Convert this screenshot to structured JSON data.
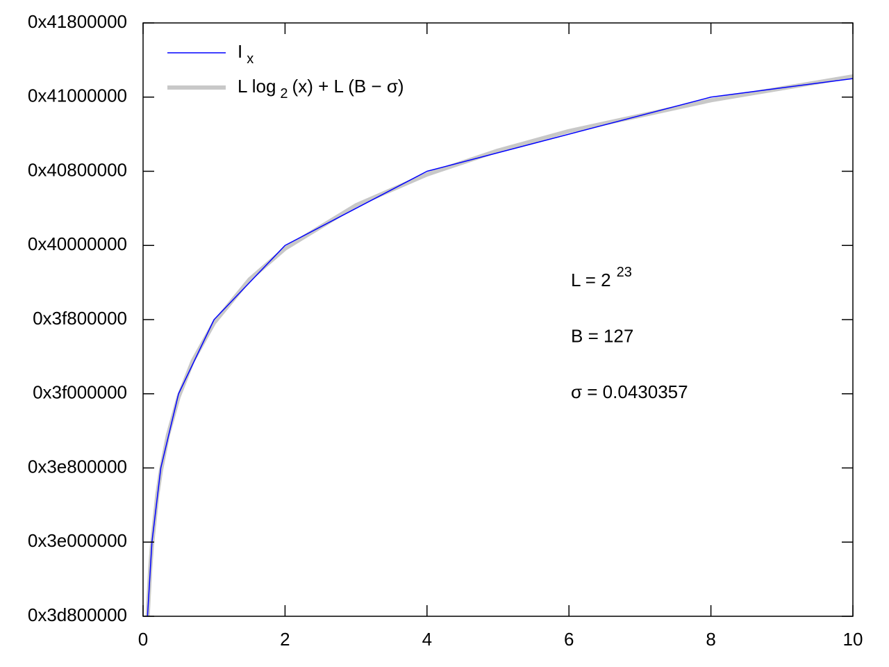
{
  "chart_data": {
    "type": "line",
    "xlim": [
      0,
      10
    ],
    "xticks": [
      0,
      2,
      4,
      6,
      8,
      10
    ],
    "ylim": [
      1031798784,
      1098907648
    ],
    "yticks": [
      {
        "value": 1031798784,
        "label": "0x3d800000"
      },
      {
        "value": 1040187392,
        "label": "0x3e000000"
      },
      {
        "value": 1048576000,
        "label": "0x3e800000"
      },
      {
        "value": 1056964608,
        "label": "0x3f000000"
      },
      {
        "value": 1065353216,
        "label": "0x3f800000"
      },
      {
        "value": 1073741824,
        "label": "0x40000000"
      },
      {
        "value": 1082130432,
        "label": "0x40800000"
      },
      {
        "value": 1090519040,
        "label": "0x41000000"
      },
      {
        "value": 1098907648,
        "label": "0x41800000"
      }
    ],
    "legend": "top-left",
    "series": [
      {
        "name": [
          {
            "text": "I"
          },
          {
            "text": "x",
            "sub": true
          }
        ],
        "color": "#0000ff",
        "width": 1.5,
        "x": [
          0.0625,
          0.125,
          0.25,
          0.5,
          1,
          2,
          4,
          8,
          10
        ],
        "values": [
          1031798784,
          1040187392,
          1048576000,
          1056964608,
          1065353216,
          1073741824,
          1082130432,
          1090519040,
          1092616192
        ]
      },
      {
        "name": [
          {
            "text": "L log"
          },
          {
            "text": "2",
            "sub": true
          },
          {
            "text": "(x) + L (B − σ)"
          }
        ],
        "color": "#c8c8c8",
        "width": 6,
        "x": [
          0.0625,
          0.1,
          0.125,
          0.2,
          0.25,
          0.35,
          0.5,
          0.7,
          1,
          1.5,
          2,
          3,
          4,
          5,
          6,
          8,
          10
        ],
        "values": [
          1031437774,
          1037125851,
          1039826382,
          1045514459,
          1048214990,
          1052287047,
          1056603598,
          1060675655,
          1064992206,
          1069899227,
          1073380814,
          1078287835,
          1081769422,
          1084469953,
          1086676443,
          1090158030,
          1092858561
        ]
      }
    ],
    "annotations": [
      {
        "text": "L = 2",
        "sup": "23"
      },
      {
        "text": "B = 127"
      },
      {
        "text": "σ = 0.0430357"
      }
    ]
  }
}
